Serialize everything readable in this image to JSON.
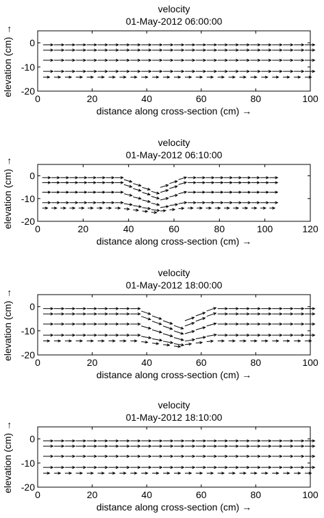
{
  "chart_data": [
    {
      "type": "quiver",
      "title": "velocity",
      "subtitle": "01-May-2012 06:00:00",
      "xlabel": "distance along cross-section (cm) →",
      "ylabel": "elevation (cm) →",
      "xlim": [
        0,
        100
      ],
      "ylim": [
        -20,
        5
      ],
      "xticks": [
        0,
        20,
        40,
        60,
        80,
        100
      ],
      "yticks": [
        -20,
        -10,
        0
      ],
      "x_range": [
        2,
        98
      ],
      "x_step": 4,
      "depth_profile": "flat",
      "rows": [
        {
          "y": -0.8,
          "u": 4.0,
          "slope": 0
        },
        {
          "y": -3.0,
          "u": 4.0,
          "slope": 0
        },
        {
          "y": -7.2,
          "u": 4.0,
          "slope": 0
        },
        {
          "y": -11.8,
          "u": 4.0,
          "slope": 0
        },
        {
          "y": -14.2,
          "u": 2.6,
          "slope": 0
        }
      ]
    },
    {
      "type": "quiver",
      "title": "velocity",
      "subtitle": "01-May-2012 06:10:00",
      "xlabel": "distance along cross-section (cm) →",
      "ylabel": "elevation (cm) →",
      "xlim": [
        0,
        120
      ],
      "ylim": [
        -20,
        5
      ],
      "xticks": [
        0,
        20,
        40,
        60,
        80,
        100,
        120
      ],
      "yticks": [
        -20,
        -10,
        0
      ],
      "x_range": [
        2,
        104
      ],
      "x_step": 4,
      "depth_profile": "dip",
      "dip": {
        "center": 50,
        "halfwidth": 14,
        "depth": 6
      },
      "rows": [
        {
          "y": -0.8,
          "u": 4.0,
          "slope": 1
        },
        {
          "y": -3.0,
          "u": 4.0,
          "slope": 1
        },
        {
          "y": -7.2,
          "u": 4.0,
          "slope": 0.8
        },
        {
          "y": -11.8,
          "u": 4.0,
          "slope": 0.5
        },
        {
          "y": -14.2,
          "u": 2.6,
          "slope": 0.3
        }
      ]
    },
    {
      "type": "quiver",
      "title": "velocity",
      "subtitle": "01-May-2012 18:00:00",
      "xlabel": "distance along cross-section (cm) →",
      "ylabel": "elevation (cm) →",
      "xlim": [
        0,
        100
      ],
      "ylim": [
        -20,
        5
      ],
      "xticks": [
        0,
        20,
        40,
        60,
        80,
        100
      ],
      "yticks": [
        -20,
        -10,
        0
      ],
      "x_range": [
        2,
        98
      ],
      "x_step": 4,
      "depth_profile": "dip",
      "dip": {
        "center": 50,
        "halfwidth": 14,
        "depth": 7
      },
      "rows": [
        {
          "y": -0.8,
          "u": 4.0,
          "slope": 1
        },
        {
          "y": -3.0,
          "u": 4.0,
          "slope": 1
        },
        {
          "y": -7.2,
          "u": 4.0,
          "slope": 0.8
        },
        {
          "y": -11.8,
          "u": 4.0,
          "slope": 0.5
        },
        {
          "y": -14.2,
          "u": 2.6,
          "slope": 0.3
        }
      ]
    },
    {
      "type": "quiver",
      "title": "velocity",
      "subtitle": "01-May-2012 18:10:00",
      "xlabel": "distance along cross-section (cm) →",
      "ylabel": "elevation (cm) →",
      "xlim": [
        0,
        100
      ],
      "ylim": [
        -20,
        5
      ],
      "xticks": [
        0,
        20,
        40,
        60,
        80,
        100
      ],
      "yticks": [
        -20,
        -10,
        0
      ],
      "x_range": [
        2,
        98
      ],
      "x_step": 4,
      "depth_profile": "flat",
      "rows": [
        {
          "y": -0.8,
          "u": 4.0,
          "slope": 0
        },
        {
          "y": -3.0,
          "u": 4.0,
          "slope": 0
        },
        {
          "y": -7.2,
          "u": 4.0,
          "slope": 0
        },
        {
          "y": -11.8,
          "u": 4.0,
          "slope": 0
        },
        {
          "y": -14.2,
          "u": 2.6,
          "slope": 0
        }
      ]
    }
  ]
}
